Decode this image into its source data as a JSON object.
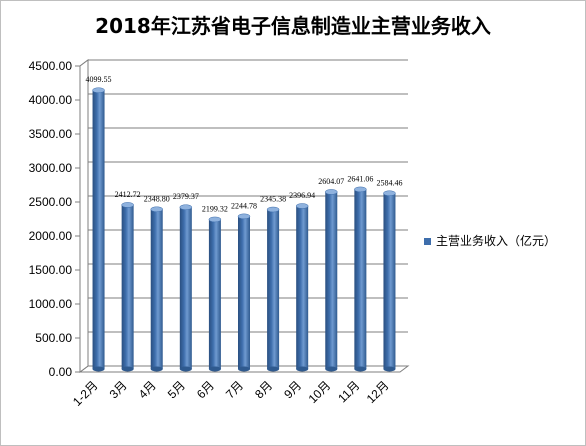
{
  "chart_data": {
    "type": "bar",
    "title": "2018年江苏省电子信息制造业主营业务收入",
    "categories": [
      "1-2月",
      "3月",
      "4月",
      "5月",
      "6月",
      "7月",
      "8月",
      "9月",
      "10月",
      "11月",
      "12月"
    ],
    "series": [
      {
        "name": "主营业务收入（亿元）",
        "values": [
          4099.55,
          2412.72,
          2348.8,
          2379.37,
          2199.32,
          2244.78,
          2345.38,
          2396.94,
          2604.07,
          2641.06,
          2584.46
        ],
        "value_labels": [
          "4099.55",
          "2412.72",
          "2348.80",
          "2379.37",
          "2199.32",
          "2244.78",
          "2345.38",
          "2396.94",
          "2604.07",
          "2641.06",
          "2584.46"
        ]
      }
    ],
    "yticks": [
      "0.00",
      "500.00",
      "1000.00",
      "1500.00",
      "2000.00",
      "2500.00",
      "3000.00",
      "3500.00",
      "4000.00",
      "4500.00"
    ],
    "ylim": [
      0,
      4500
    ],
    "grid": true,
    "legend_position": "right",
    "bar_color": "#3e6eac"
  }
}
